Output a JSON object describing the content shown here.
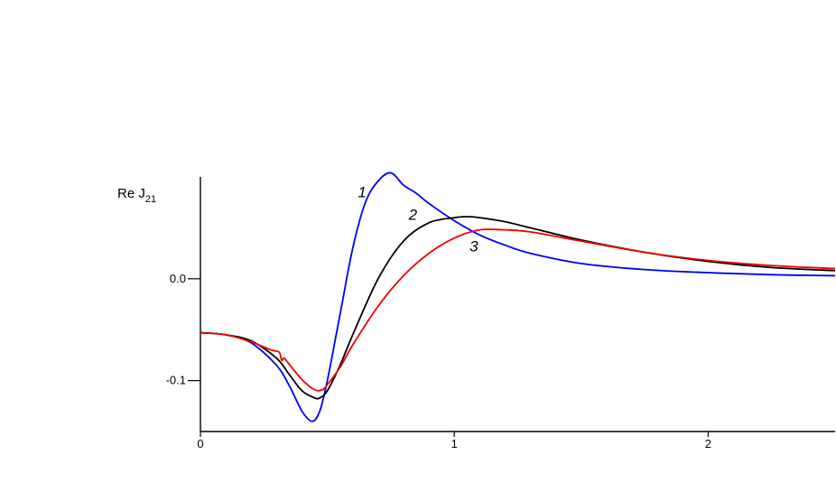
{
  "chart_data": {
    "type": "line",
    "title": "",
    "xlabel": "",
    "ylabel": "Re J",
    "ylabel_sub": "21",
    "xlim": [
      0,
      2.5
    ],
    "ylim": [
      -0.15,
      0.1
    ],
    "x_ticks": [
      0,
      1,
      2
    ],
    "x_tick_labels": [
      "0",
      "1",
      "2"
    ],
    "y_ticks": [
      0.0,
      -0.1
    ],
    "y_tick_labels": [
      "0.0",
      "-0.1"
    ],
    "grid": false,
    "series": [
      {
        "name": "1",
        "color": "#0000ee",
        "x": [
          0,
          0.1,
          0.2,
          0.3,
          0.35,
          0.4,
          0.44,
          0.47,
          0.5,
          0.55,
          0.6,
          0.65,
          0.7,
          0.75,
          0.8,
          0.85,
          0.9,
          1.0,
          1.1,
          1.2,
          1.3,
          1.5,
          1.75,
          2.0,
          2.25,
          2.5
        ],
        "y": [
          -0.053,
          -0.055,
          -0.063,
          -0.085,
          -0.105,
          -0.13,
          -0.14,
          -0.13,
          -0.1,
          -0.035,
          0.03,
          0.075,
          0.096,
          0.104,
          0.092,
          0.084,
          0.074,
          0.057,
          0.043,
          0.033,
          0.025,
          0.015,
          0.009,
          0.006,
          0.004,
          0.003
        ]
      },
      {
        "name": "2",
        "color": "#000000",
        "x": [
          0,
          0.1,
          0.2,
          0.3,
          0.35,
          0.4,
          0.45,
          0.47,
          0.5,
          0.55,
          0.6,
          0.7,
          0.8,
          0.9,
          1.0,
          1.05,
          1.1,
          1.2,
          1.3,
          1.5,
          1.75,
          2.0,
          2.25,
          2.5
        ],
        "y": [
          -0.053,
          -0.055,
          -0.061,
          -0.078,
          -0.094,
          -0.11,
          -0.117,
          -0.117,
          -0.11,
          -0.085,
          -0.055,
          0.0,
          0.037,
          0.055,
          0.06,
          0.061,
          0.06,
          0.056,
          0.05,
          0.038,
          0.026,
          0.017,
          0.011,
          0.008
        ]
      },
      {
        "name": "3",
        "color": "#ee0000",
        "x": [
          0,
          0.1,
          0.2,
          0.28,
          0.31,
          0.32,
          0.33,
          0.35,
          0.4,
          0.45,
          0.48,
          0.5,
          0.55,
          0.6,
          0.7,
          0.8,
          0.9,
          1.0,
          1.1,
          1.2,
          1.3,
          1.5,
          1.75,
          2.0,
          2.25,
          2.5
        ],
        "y": [
          -0.053,
          -0.055,
          -0.062,
          -0.07,
          -0.072,
          -0.08,
          -0.078,
          -0.084,
          -0.099,
          -0.109,
          -0.109,
          -0.104,
          -0.087,
          -0.065,
          -0.027,
          0.003,
          0.025,
          0.04,
          0.048,
          0.048,
          0.046,
          0.037,
          0.026,
          0.018,
          0.013,
          0.01
        ]
      }
    ],
    "curve_labels": [
      {
        "text": "1",
        "x": 0.62,
        "y": 0.08
      },
      {
        "text": "2",
        "x": 0.82,
        "y": 0.058
      },
      {
        "text": "3",
        "x": 1.06,
        "y": 0.027
      }
    ]
  }
}
